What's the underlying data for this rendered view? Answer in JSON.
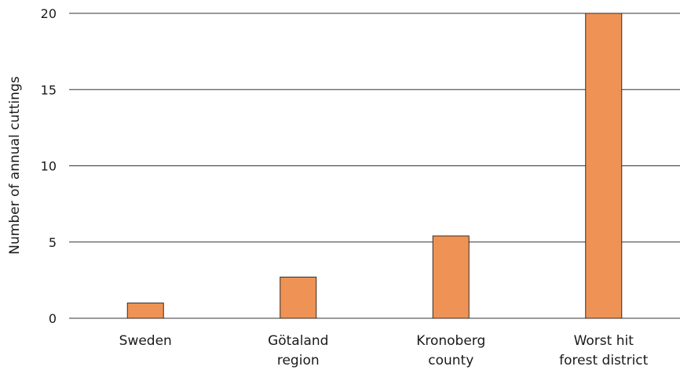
{
  "chart_data": {
    "type": "bar",
    "title": "",
    "xlabel": "",
    "ylabel": "Number of annual cuttings",
    "categories": [
      [
        "Sweden"
      ],
      [
        "Götaland",
        "region"
      ],
      [
        "Kronoberg",
        "county"
      ],
      [
        "Worst hit",
        "forest district"
      ]
    ],
    "values": [
      1.0,
      2.7,
      5.4,
      20.0
    ],
    "ylim": [
      0,
      20
    ],
    "yticks": [
      0,
      5,
      10,
      15,
      20
    ],
    "ytick_labels": [
      "0",
      "5",
      "10",
      "15",
      "20"
    ],
    "grid": true,
    "bar_color": "#EE9355"
  }
}
